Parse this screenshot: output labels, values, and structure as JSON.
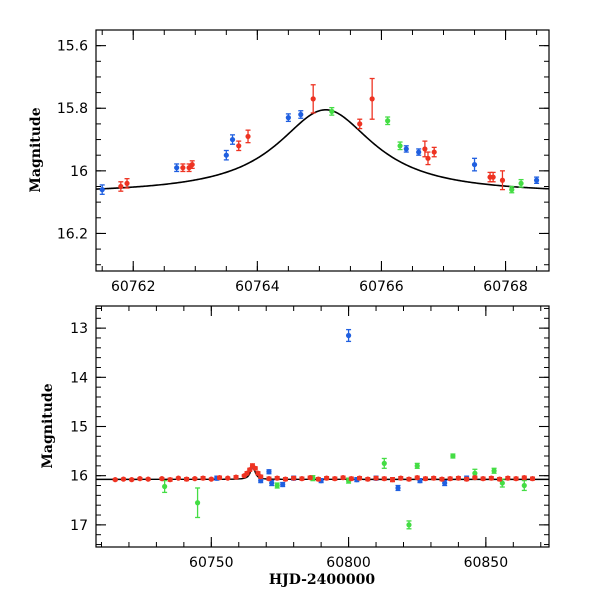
{
  "chart_data": [
    {
      "type": "scatter",
      "ylabel": "Magnitude",
      "xlabel": "",
      "xlim": [
        60761.4,
        60768.7
      ],
      "ylim": [
        16.32,
        15.55
      ],
      "y_inverted": true,
      "xticks": [
        60762,
        60764,
        60766,
        60768
      ],
      "xtick_labels": [
        "60762",
        "60764",
        "60766",
        "60768"
      ],
      "yticks": [
        15.6,
        15.8,
        16,
        16.2
      ],
      "ytick_labels": [
        "15.6",
        "15.8",
        "16",
        "16.2"
      ],
      "model_curve": {
        "baseline": 16.075,
        "amplitude": 0.27,
        "t0": 60765.1,
        "width": 0.95,
        "color": "#000000"
      },
      "series": [
        {
          "color": "#1f5fe0",
          "points": [
            {
              "x": 60761.5,
              "y": 16.06,
              "err": 0.015
            },
            {
              "x": 60762.7,
              "y": 15.99,
              "err": 0.012
            },
            {
              "x": 60763.5,
              "y": 15.95,
              "err": 0.015
            },
            {
              "x": 60763.6,
              "y": 15.9,
              "err": 0.015
            },
            {
              "x": 60764.5,
              "y": 15.83,
              "err": 0.012
            },
            {
              "x": 60764.7,
              "y": 15.82,
              "err": 0.012
            },
            {
              "x": 60766.4,
              "y": 15.93,
              "err": 0.01
            },
            {
              "x": 60766.6,
              "y": 15.94,
              "err": 0.01
            },
            {
              "x": 60767.5,
              "y": 15.98,
              "err": 0.02
            },
            {
              "x": 60768.5,
              "y": 16.03,
              "err": 0.01
            }
          ]
        },
        {
          "color": "#ee3322",
          "points": [
            {
              "x": 60761.8,
              "y": 16.05,
              "err": 0.015
            },
            {
              "x": 60761.9,
              "y": 16.04,
              "err": 0.015
            },
            {
              "x": 60762.8,
              "y": 15.99,
              "err": 0.012
            },
            {
              "x": 60762.9,
              "y": 15.99,
              "err": 0.012
            },
            {
              "x": 60762.95,
              "y": 15.98,
              "err": 0.012
            },
            {
              "x": 60763.7,
              "y": 15.92,
              "err": 0.015
            },
            {
              "x": 60763.85,
              "y": 15.89,
              "err": 0.02
            },
            {
              "x": 60764.9,
              "y": 15.77,
              "err": 0.045
            },
            {
              "x": 60765.65,
              "y": 15.85,
              "err": 0.015
            },
            {
              "x": 60765.85,
              "y": 15.77,
              "err": 0.065
            },
            {
              "x": 60766.7,
              "y": 15.93,
              "err": 0.025
            },
            {
              "x": 60766.75,
              "y": 15.96,
              "err": 0.02
            },
            {
              "x": 60766.85,
              "y": 15.94,
              "err": 0.015
            },
            {
              "x": 60767.75,
              "y": 16.02,
              "err": 0.015
            },
            {
              "x": 60767.8,
              "y": 16.02,
              "err": 0.015
            },
            {
              "x": 60767.95,
              "y": 16.03,
              "err": 0.03
            }
          ]
        },
        {
          "color": "#44dd44",
          "points": [
            {
              "x": 60765.2,
              "y": 15.81,
              "err": 0.012
            },
            {
              "x": 60766.1,
              "y": 15.84,
              "err": 0.012
            },
            {
              "x": 60766.3,
              "y": 15.92,
              "err": 0.012
            },
            {
              "x": 60768.1,
              "y": 16.06,
              "err": 0.01
            },
            {
              "x": 60768.25,
              "y": 16.04,
              "err": 0.012
            }
          ]
        }
      ]
    },
    {
      "type": "scatter",
      "ylabel": "Magnitude",
      "xlabel": "HJD-2400000",
      "xlim": [
        60708,
        60873
      ],
      "ylim": [
        17.45,
        12.55
      ],
      "y_inverted": true,
      "xticks": [
        60750,
        60800,
        60850
      ],
      "xtick_labels": [
        "60750",
        "60800",
        "60850"
      ],
      "yticks": [
        13,
        14,
        15,
        16,
        17
      ],
      "ytick_labels": [
        "13",
        "14",
        "15",
        "16",
        "17"
      ],
      "model_curve": {
        "baseline": 16.075,
        "amplitude": 0.27,
        "t0": 60765.1,
        "width": 0.95,
        "color": "#000000"
      },
      "series": [
        {
          "color": "#1f5fe0",
          "points": [
            {
              "x": 60752,
              "y": 16.05,
              "err": 0.04
            },
            {
              "x": 60765,
              "y": 15.82,
              "err": 0.02
            },
            {
              "x": 60768,
              "y": 16.1,
              "err": 0.04
            },
            {
              "x": 60771,
              "y": 15.92,
              "err": 0.04
            },
            {
              "x": 60772,
              "y": 16.15,
              "err": 0.05
            },
            {
              "x": 60776,
              "y": 16.18,
              "err": 0.04
            },
            {
              "x": 60780,
              "y": 16.05,
              "err": 0.04
            },
            {
              "x": 60790,
              "y": 16.1,
              "err": 0.04
            },
            {
              "x": 60800,
              "y": 13.15,
              "err": 0.12
            },
            {
              "x": 60803,
              "y": 16.08,
              "err": 0.04
            },
            {
              "x": 60810,
              "y": 16.05,
              "err": 0.04
            },
            {
              "x": 60818,
              "y": 16.25,
              "err": 0.05
            },
            {
              "x": 60826,
              "y": 16.1,
              "err": 0.04
            },
            {
              "x": 60835,
              "y": 16.15,
              "err": 0.05
            },
            {
              "x": 60843,
              "y": 16.05,
              "err": 0.04
            }
          ]
        },
        {
          "color": "#44dd44",
          "points": [
            {
              "x": 60733,
              "y": 16.22,
              "err": 0.12
            },
            {
              "x": 60745,
              "y": 16.55,
              "err": 0.3
            },
            {
              "x": 60774,
              "y": 16.2,
              "err": 0.05
            },
            {
              "x": 60787,
              "y": 16.05,
              "err": 0.05
            },
            {
              "x": 60800,
              "y": 16.1,
              "err": 0.05
            },
            {
              "x": 60813,
              "y": 15.75,
              "err": 0.1
            },
            {
              "x": 60822,
              "y": 17.0,
              "err": 0.08
            },
            {
              "x": 60825,
              "y": 15.8,
              "err": 0.05
            },
            {
              "x": 60838,
              "y": 15.6,
              "err": 0.04
            },
            {
              "x": 60846,
              "y": 15.95,
              "err": 0.08
            },
            {
              "x": 60853,
              "y": 15.9,
              "err": 0.05
            },
            {
              "x": 60856,
              "y": 16.15,
              "err": 0.08
            },
            {
              "x": 60864,
              "y": 16.2,
              "err": 0.1
            }
          ]
        },
        {
          "color": "#ee3322",
          "points": [
            {
              "x": 60715,
              "y": 16.08,
              "err": 0.02
            },
            {
              "x": 60718,
              "y": 16.07,
              "err": 0.02
            },
            {
              "x": 60721,
              "y": 16.08,
              "err": 0.02
            },
            {
              "x": 60724,
              "y": 16.06,
              "err": 0.02
            },
            {
              "x": 60727,
              "y": 16.07,
              "err": 0.02
            },
            {
              "x": 60732,
              "y": 16.06,
              "err": 0.02
            },
            {
              "x": 60735,
              "y": 16.08,
              "err": 0.03
            },
            {
              "x": 60738,
              "y": 16.05,
              "err": 0.02
            },
            {
              "x": 60741,
              "y": 16.07,
              "err": 0.03
            },
            {
              "x": 60744,
              "y": 16.06,
              "err": 0.02
            },
            {
              "x": 60747,
              "y": 16.05,
              "err": 0.03
            },
            {
              "x": 60750,
              "y": 16.07,
              "err": 0.02
            },
            {
              "x": 60753,
              "y": 16.04,
              "err": 0.03
            },
            {
              "x": 60756,
              "y": 16.05,
              "err": 0.02
            },
            {
              "x": 60759,
              "y": 16.03,
              "err": 0.03
            },
            {
              "x": 60762,
              "y": 16.0,
              "err": 0.02
            },
            {
              "x": 60763,
              "y": 15.95,
              "err": 0.03
            },
            {
              "x": 60764,
              "y": 15.88,
              "err": 0.03
            },
            {
              "x": 60765,
              "y": 15.8,
              "err": 0.04
            },
            {
              "x": 60766,
              "y": 15.85,
              "err": 0.03
            },
            {
              "x": 60767,
              "y": 15.95,
              "err": 0.03
            },
            {
              "x": 60768,
              "y": 16.02,
              "err": 0.03
            },
            {
              "x": 60771,
              "y": 16.06,
              "err": 0.03
            },
            {
              "x": 60774,
              "y": 16.05,
              "err": 0.03
            },
            {
              "x": 60777,
              "y": 16.07,
              "err": 0.03
            },
            {
              "x": 60780,
              "y": 16.05,
              "err": 0.03
            },
            {
              "x": 60783,
              "y": 16.06,
              "err": 0.03
            },
            {
              "x": 60786,
              "y": 16.04,
              "err": 0.03
            },
            {
              "x": 60789,
              "y": 16.07,
              "err": 0.03
            },
            {
              "x": 60792,
              "y": 16.05,
              "err": 0.03
            },
            {
              "x": 60795,
              "y": 16.06,
              "err": 0.03
            },
            {
              "x": 60798,
              "y": 16.04,
              "err": 0.03
            },
            {
              "x": 60801,
              "y": 16.06,
              "err": 0.03
            },
            {
              "x": 60804,
              "y": 16.05,
              "err": 0.03
            },
            {
              "x": 60807,
              "y": 16.07,
              "err": 0.03
            },
            {
              "x": 60810,
              "y": 16.05,
              "err": 0.03
            },
            {
              "x": 60813,
              "y": 16.06,
              "err": 0.03
            },
            {
              "x": 60816,
              "y": 16.08,
              "err": 0.04
            },
            {
              "x": 60819,
              "y": 16.05,
              "err": 0.03
            },
            {
              "x": 60822,
              "y": 16.07,
              "err": 0.03
            },
            {
              "x": 60825,
              "y": 16.04,
              "err": 0.03
            },
            {
              "x": 60828,
              "y": 16.06,
              "err": 0.03
            },
            {
              "x": 60831,
              "y": 16.05,
              "err": 0.03
            },
            {
              "x": 60834,
              "y": 16.07,
              "err": 0.03
            },
            {
              "x": 60837,
              "y": 16.06,
              "err": 0.03
            },
            {
              "x": 60840,
              "y": 16.05,
              "err": 0.03
            },
            {
              "x": 60843,
              "y": 16.07,
              "err": 0.03
            },
            {
              "x": 60846,
              "y": 16.04,
              "err": 0.03
            },
            {
              "x": 60849,
              "y": 16.06,
              "err": 0.03
            },
            {
              "x": 60852,
              "y": 16.05,
              "err": 0.03
            },
            {
              "x": 60855,
              "y": 16.07,
              "err": 0.03
            },
            {
              "x": 60858,
              "y": 16.05,
              "err": 0.03
            },
            {
              "x": 60861,
              "y": 16.06,
              "err": 0.03
            },
            {
              "x": 60864,
              "y": 16.04,
              "err": 0.03
            },
            {
              "x": 60867,
              "y": 16.06,
              "err": 0.03
            }
          ]
        }
      ]
    }
  ]
}
